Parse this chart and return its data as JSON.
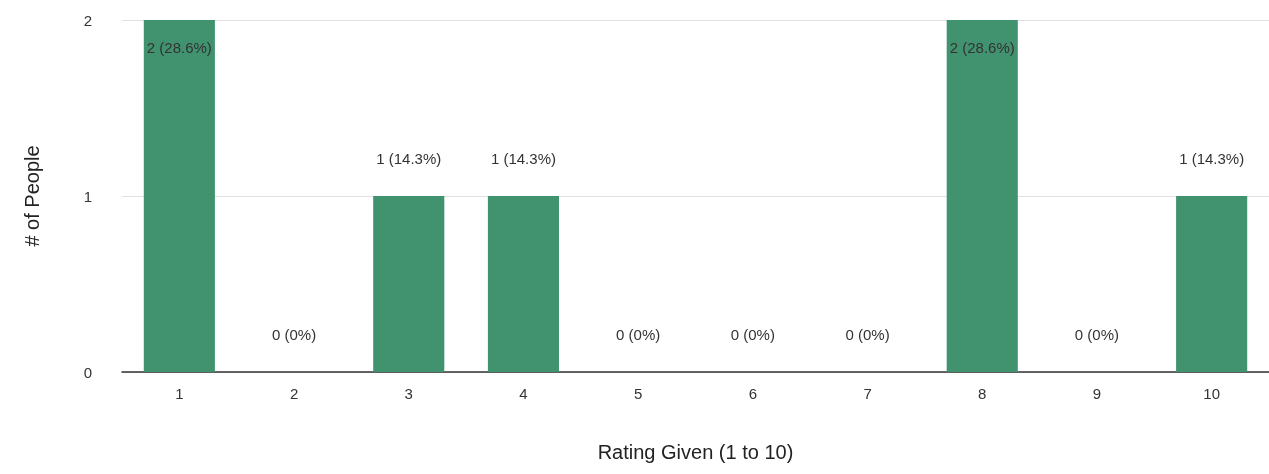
{
  "chart_data": {
    "type": "bar",
    "xlabel": "Rating Given (1 to 10)",
    "ylabel": "# of People",
    "categories": [
      "1",
      "2",
      "3",
      "4",
      "5",
      "6",
      "7",
      "8",
      "9",
      "10"
    ],
    "values": [
      2,
      0,
      1,
      1,
      0,
      0,
      0,
      2,
      0,
      1
    ],
    "value_labels": [
      "2 (28.6%)",
      "0 (0%)",
      "1 (14.3%)",
      "1 (14.3%)",
      "0 (0%)",
      "0 (0%)",
      "0 (0%)",
      "2 (28.6%)",
      "0 (0%)",
      "1 (14.3%)"
    ],
    "color": "#41926e",
    "ylim": [
      0,
      2
    ],
    "yticks": [
      0,
      1,
      2
    ],
    "grid": "y"
  }
}
